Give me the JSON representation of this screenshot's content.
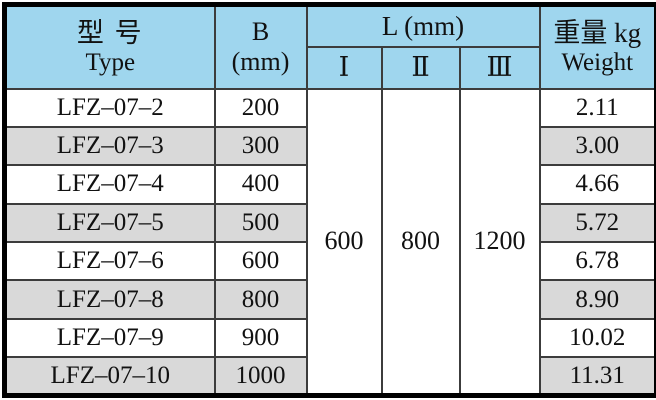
{
  "colors": {
    "header_bg": "#9fd6ee",
    "stripe_bg": "#d9d9d9",
    "row_bg": "#ffffff",
    "grid_line": "#3c3c3c",
    "outer_border": "#000000",
    "text": "#111111"
  },
  "header": {
    "type_zh": "型 号",
    "type_en": "Type",
    "b": "B",
    "b_unit": "(mm)",
    "l": "L (mm)",
    "sub": [
      "Ⅰ",
      "Ⅱ",
      "Ⅲ"
    ],
    "weight_zh": "重量 kg",
    "weight_en": "Weight"
  },
  "l_values": [
    "600",
    "800",
    "1200"
  ],
  "rows": [
    {
      "type": "LFZ–07–2",
      "b": "200",
      "weight": "2.11",
      "shaded": false
    },
    {
      "type": "LFZ–07–3",
      "b": "300",
      "weight": "3.00",
      "shaded": true
    },
    {
      "type": "LFZ–07–4",
      "b": "400",
      "weight": "4.66",
      "shaded": false
    },
    {
      "type": "LFZ–07–5",
      "b": "500",
      "weight": "5.72",
      "shaded": true
    },
    {
      "type": "LFZ–07–6",
      "b": "600",
      "weight": "6.78",
      "shaded": false
    },
    {
      "type": "LFZ–07–8",
      "b": "800",
      "weight": "8.90",
      "shaded": true
    },
    {
      "type": "LFZ–07–9",
      "b": "900",
      "weight": "10.02",
      "shaded": false
    },
    {
      "type": "LFZ–07–10",
      "b": "1000",
      "weight": "11.31",
      "shaded": true
    }
  ]
}
